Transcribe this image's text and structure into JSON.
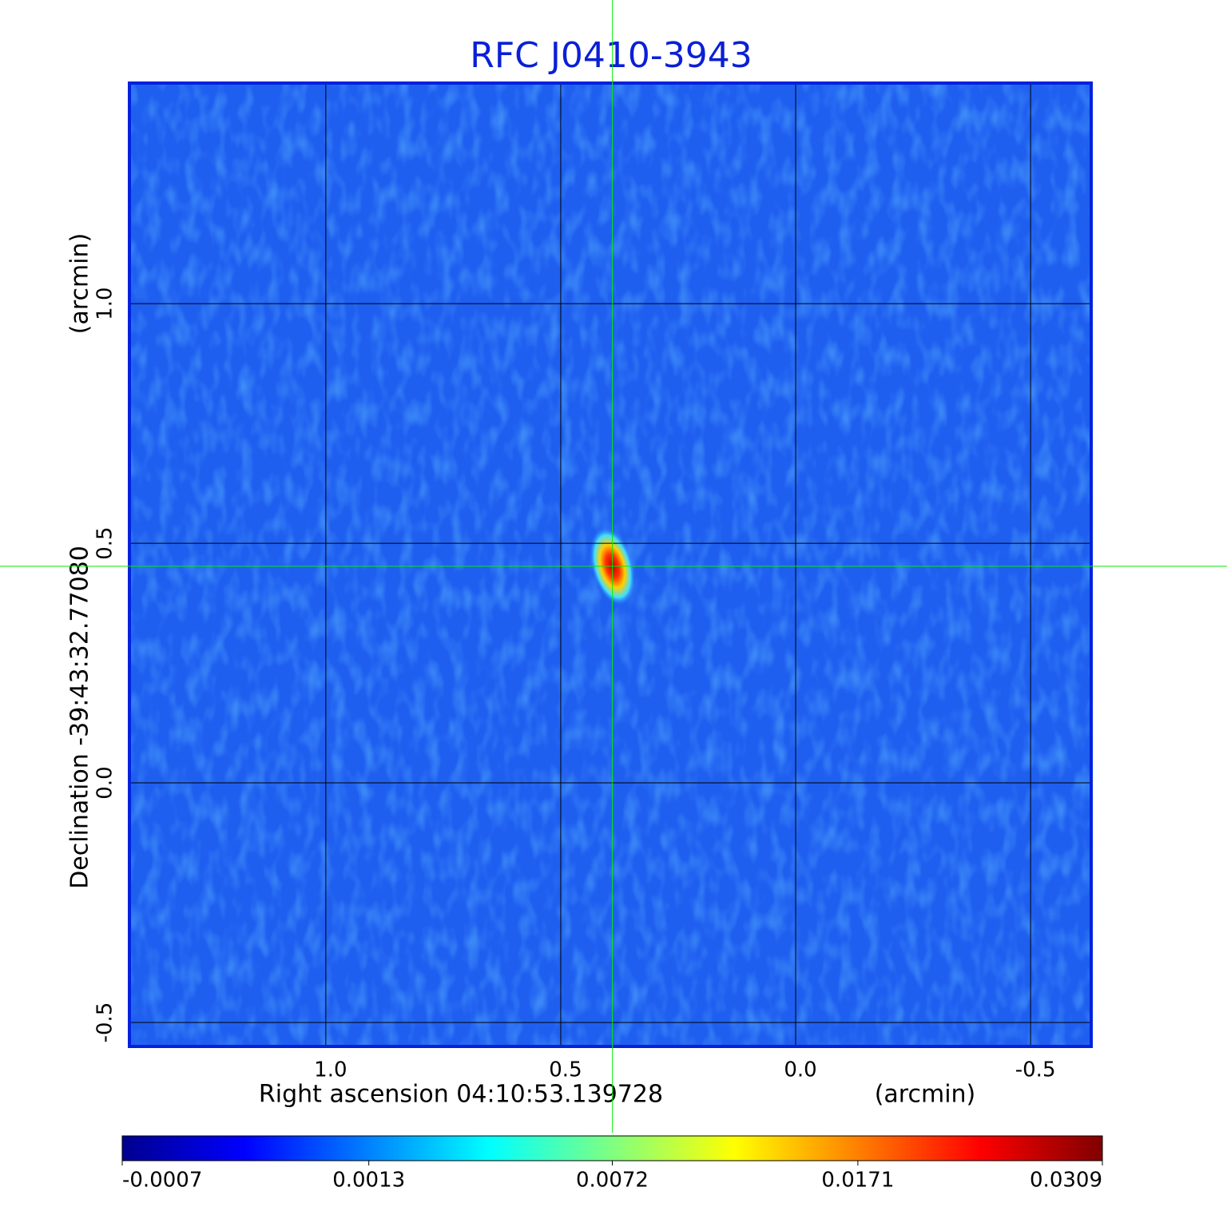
{
  "chart_data": {
    "type": "image",
    "title": "RFC J0410-3943",
    "xlabel": "Right ascension  04:10:53.139728",
    "xunit": "(arcmin)",
    "ylabel": "Declination  -39:43:32.77080",
    "yunit": "(arcmin)",
    "xlim": [
      1.418,
      -0.629
    ],
    "ylim": [
      -0.55,
      1.457
    ],
    "xticks": [
      {
        "value": 1,
        "label": "1.0"
      },
      0.5,
      {
        "value": 0,
        "label": "0.0"
      },
      -0.5
    ],
    "yticks": [
      {
        "value": 1,
        "label": "1.0"
      },
      0.5,
      {
        "value": 0,
        "label": "0.0"
      },
      -0.5
    ],
    "grid": true,
    "frame_color": "#0022dd",
    "crosshair": {
      "x": 0.39,
      "y": 0.452,
      "color": "#00ee00"
    },
    "colorbar": {
      "scale": "sqrt",
      "clim": [
        -0.0007,
        0.0309
      ],
      "ticks": [
        -0.0007,
        0.0013,
        0.0072,
        0.0171,
        0.0309
      ],
      "colors": [
        "#00008f",
        "#0000ff",
        "#0080ff",
        "#00ffff",
        "#80ff80",
        "#ffff00",
        "#ff8000",
        "#ff0000",
        "#800000"
      ]
    }
  }
}
